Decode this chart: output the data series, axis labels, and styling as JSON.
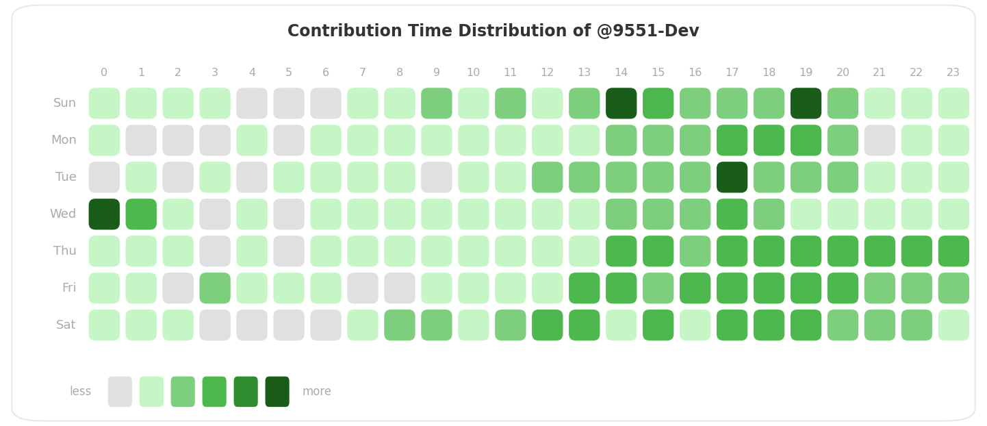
{
  "title": "Contribution Time Distribution of @9551-Dev",
  "days": [
    "Sun",
    "Mon",
    "Tue",
    "Wed",
    "Thu",
    "Fri",
    "Sat"
  ],
  "hours": [
    "0",
    "1",
    "2",
    "3",
    "4",
    "5",
    "6",
    "7",
    "8",
    "9",
    "10",
    "11",
    "12",
    "13",
    "14",
    "15",
    "16",
    "17",
    "18",
    "19",
    "20",
    "21",
    "22",
    "23"
  ],
  "colors": [
    "#e0e0e0",
    "#c6f6c6",
    "#7dce7d",
    "#4db84d",
    "#2e8b2e",
    "#1a5c1a"
  ],
  "grid": [
    [
      1,
      1,
      1,
      1,
      0,
      0,
      0,
      1,
      1,
      2,
      1,
      2,
      1,
      2,
      5,
      3,
      2,
      2,
      2,
      5,
      2,
      1,
      1,
      1
    ],
    [
      1,
      0,
      0,
      0,
      1,
      0,
      1,
      1,
      1,
      1,
      1,
      1,
      1,
      1,
      2,
      2,
      2,
      3,
      3,
      3,
      2,
      0,
      1,
      1
    ],
    [
      0,
      1,
      0,
      1,
      0,
      1,
      1,
      1,
      1,
      0,
      1,
      1,
      2,
      2,
      2,
      2,
      2,
      5,
      2,
      2,
      2,
      1,
      1,
      1
    ],
    [
      5,
      3,
      1,
      0,
      1,
      0,
      1,
      1,
      1,
      1,
      1,
      1,
      1,
      1,
      2,
      2,
      2,
      3,
      2,
      1,
      1,
      1,
      1,
      1
    ],
    [
      1,
      1,
      1,
      0,
      1,
      0,
      1,
      1,
      1,
      1,
      1,
      1,
      1,
      1,
      3,
      3,
      2,
      3,
      3,
      3,
      3,
      3,
      3,
      3
    ],
    [
      1,
      1,
      0,
      2,
      1,
      1,
      1,
      0,
      0,
      1,
      1,
      1,
      1,
      3,
      3,
      2,
      3,
      3,
      3,
      3,
      3,
      2,
      2,
      2
    ],
    [
      1,
      1,
      1,
      0,
      0,
      0,
      0,
      1,
      2,
      2,
      1,
      2,
      3,
      3,
      1,
      3,
      1,
      3,
      3,
      3,
      2,
      2,
      2,
      1
    ]
  ],
  "legend_colors": [
    "#e0e0e0",
    "#c6f6c6",
    "#7dce7d",
    "#4db84d",
    "#2e8b2e",
    "#1a5c1a"
  ],
  "bg_color": "#ffffff",
  "border_color": "#e8e8e8",
  "title_fontsize": 17,
  "title_color": "#333333",
  "tick_color": "#aaaaaa",
  "day_label_color": "#aaaaaa",
  "legend_label_color": "#aaaaaa"
}
